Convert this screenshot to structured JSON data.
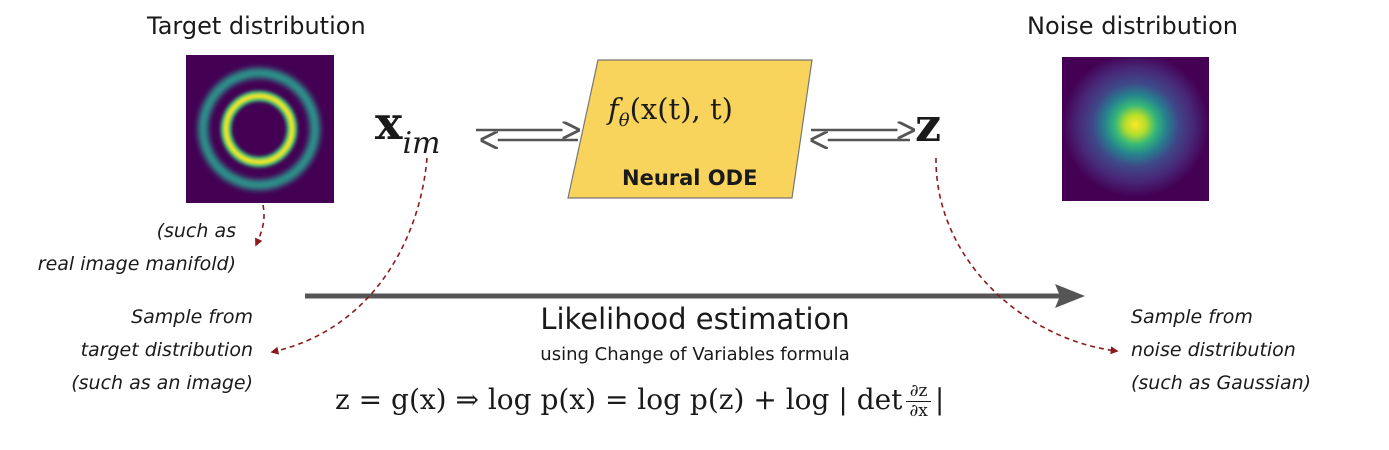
{
  "target": {
    "title": "Target distribution",
    "caption_lines": [
      "(such as",
      "real image manifold)"
    ]
  },
  "noise": {
    "title": "Noise distribution"
  },
  "variables": {
    "x_main": "x",
    "x_sub": "im",
    "z": "z"
  },
  "ode_box": {
    "formula_f": "f",
    "formula_sub": "θ",
    "formula_args": "(x(t), t)",
    "label": "Neural ODE"
  },
  "likelihood": {
    "title": "Likelihood estimation",
    "subtitle": "using Change of Variables formula",
    "formula_lhs": "z = g(x) ⇒ log p(x) = log p(z) + log | det",
    "formula_num": "∂z",
    "formula_den": "∂x",
    "formula_end": "|"
  },
  "notes": {
    "sample_target": [
      "Sample from",
      "target distribution",
      "(such as an image)"
    ],
    "sample_noise": [
      "Sample from",
      "noise distribution",
      "(such as Gaussian)"
    ]
  },
  "colors": {
    "panel_bg": "#440154",
    "ring_outer": "#2a9d8e",
    "ring_inner": "#fde725",
    "ode_fill": "#f9d45c",
    "arrow_gray": "#555555",
    "dashed_red": "#8b1a1a"
  }
}
